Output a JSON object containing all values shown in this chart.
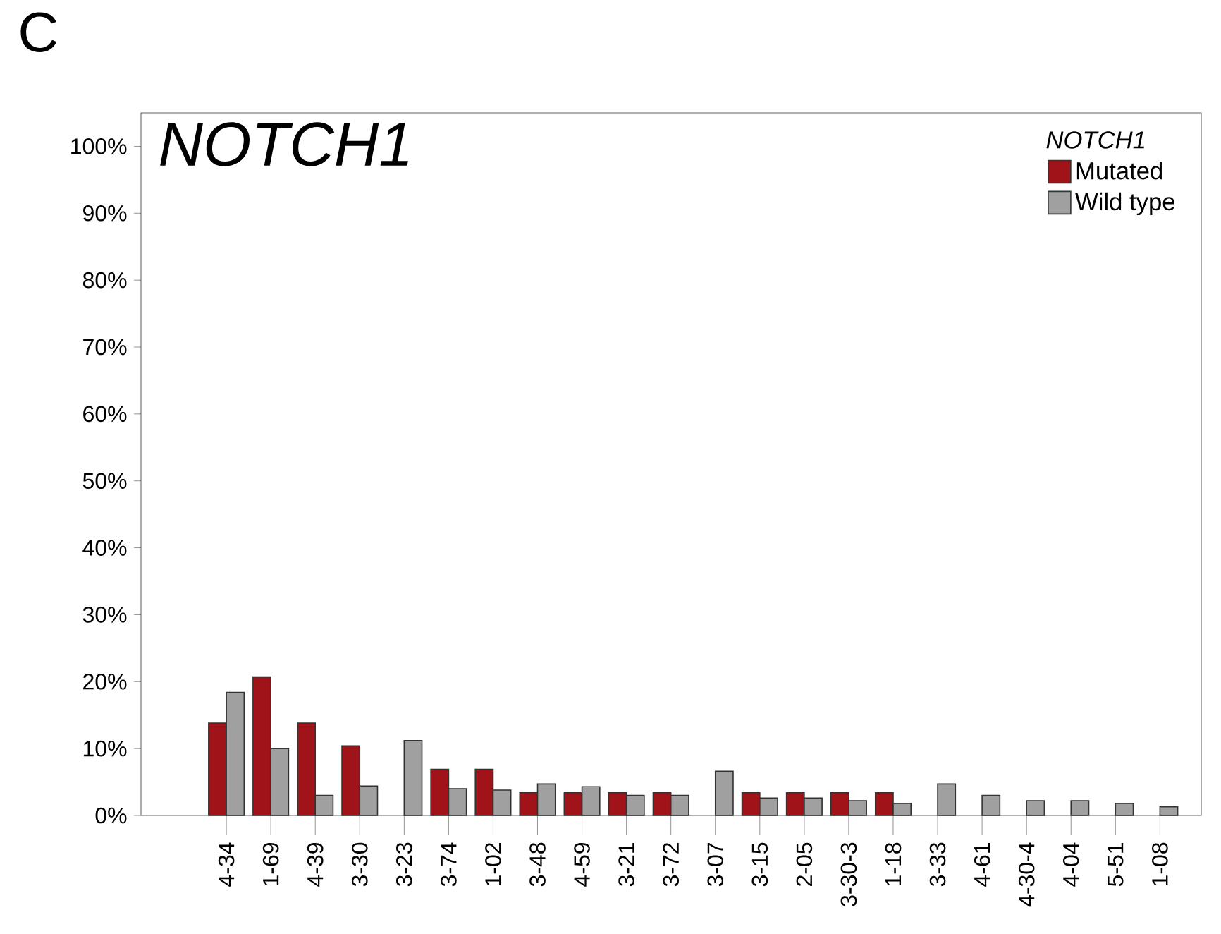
{
  "chart_data": {
    "type": "bar",
    "title": "NOTCH1",
    "legend_title": "NOTCH1",
    "legend": "top right",
    "annotations": [
      "C"
    ],
    "categories": [
      "4-34",
      "1-69",
      "4-39",
      "3-30",
      "3-23",
      "3-74",
      "1-02",
      "3-48",
      "4-59",
      "3-21",
      "3-72",
      "3-07",
      "3-15",
      "2-05",
      "3-30-3",
      "1-18",
      "3-33",
      "4-61",
      "4-30-4",
      "4-04",
      "5-51",
      "1-08"
    ],
    "series": [
      {
        "name": "Mutated",
        "color": "#a01319",
        "values": [
          13.8,
          20.7,
          13.8,
          10.4,
          null,
          6.9,
          6.9,
          3.4,
          3.4,
          3.4,
          3.4,
          null,
          3.4,
          3.4,
          3.4,
          3.4,
          null,
          null,
          null,
          null,
          null,
          null
        ]
      },
      {
        "name": "Wild type",
        "color": "#a0a0a0",
        "values": [
          18.4,
          10.0,
          3.0,
          4.4,
          11.2,
          4.0,
          3.8,
          4.7,
          4.3,
          3.0,
          3.0,
          6.6,
          2.6,
          2.6,
          2.2,
          1.8,
          4.7,
          3.0,
          2.2,
          2.2,
          1.8,
          1.3
        ]
      }
    ],
    "ylim": [
      0,
      105
    ],
    "yticks": [
      {
        "value": 0,
        "label": "0%"
      },
      {
        "value": 10,
        "label": "10%"
      },
      {
        "value": 20,
        "label": "20%"
      },
      {
        "value": 30,
        "label": "30%"
      },
      {
        "value": 40,
        "label": "40%"
      },
      {
        "value": 50,
        "label": "50%"
      },
      {
        "value": 60,
        "label": "60%"
      },
      {
        "value": 70,
        "label": "70%"
      },
      {
        "value": 80,
        "label": "80%"
      },
      {
        "value": 90,
        "label": "90%"
      },
      {
        "value": 100,
        "label": "100%"
      }
    ],
    "grid": false
  }
}
